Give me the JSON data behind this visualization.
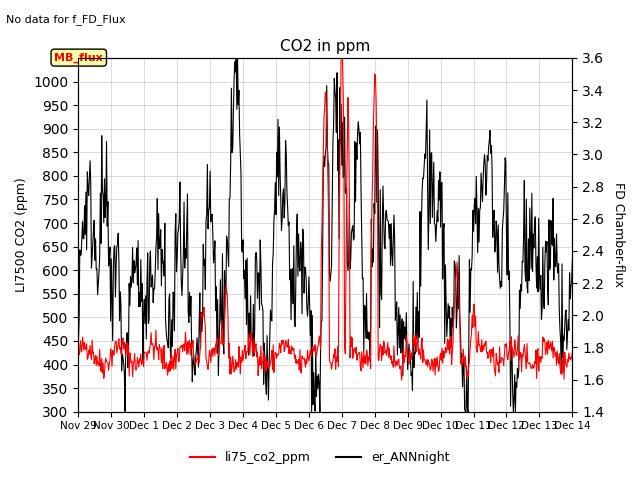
{
  "title": "CO2 in ppm",
  "subtitle": "No data for f_FD_Flux",
  "ylabel_left": "LI7500 CO2 (ppm)",
  "ylabel_right": "FD Chamber-flux",
  "ylim_left": [
    300,
    1050
  ],
  "ylim_right": [
    1.4,
    3.6
  ],
  "yticks_left": [
    300,
    350,
    400,
    450,
    500,
    550,
    600,
    650,
    700,
    750,
    800,
    850,
    900,
    950,
    1000
  ],
  "yticks_right": [
    1.4,
    1.6,
    1.8,
    2.0,
    2.2,
    2.4,
    2.6,
    2.8,
    3.0,
    3.2,
    3.4,
    3.6
  ],
  "legend_labels": [
    "li75_co2_ppm",
    "er_ANNnight"
  ],
  "legend_colors": [
    "red",
    "black"
  ],
  "mb_flux_box_color": "#ffffaa",
  "mb_flux_text_color": "red",
  "line_color_red": "red",
  "line_color_black": "black",
  "background_color": "white",
  "grid_color": "#cccccc"
}
